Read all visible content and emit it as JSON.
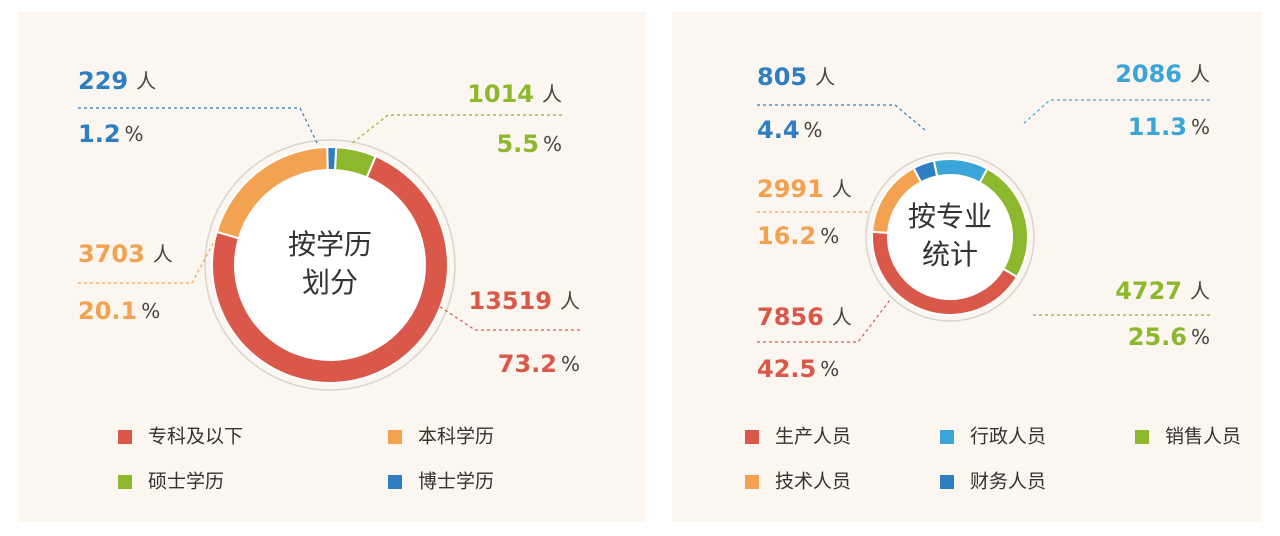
{
  "chart_data": [
    {
      "type": "pie",
      "title_lines": [
        "按学历",
        "划分"
      ],
      "count_unit": "人",
      "percent_unit": "%",
      "categories": [
        "硕士学历",
        "专科及以下",
        "本科学历",
        "博士学历"
      ],
      "values": [
        1014,
        13519,
        3703,
        229
      ],
      "percents": [
        5.5,
        73.2,
        20.1,
        1.2
      ],
      "colors": [
        "#8db82e",
        "#d9584a",
        "#f2a250",
        "#2f7ec2"
      ]
    },
    {
      "type": "pie",
      "title_lines": [
        "按专业",
        "统计"
      ],
      "count_unit": "人",
      "percent_unit": "%",
      "categories": [
        "行政人员",
        "销售人员",
        "生产人员",
        "技术人员",
        "财务人员"
      ],
      "values": [
        2086,
        4727,
        7856,
        2991,
        805
      ],
      "percents": [
        11.3,
        25.6,
        42.5,
        16.2,
        4.4
      ],
      "colors": [
        "#3aa6d8",
        "#8db82e",
        "#d9584a",
        "#f2a250",
        "#2f7ec2"
      ]
    }
  ]
}
